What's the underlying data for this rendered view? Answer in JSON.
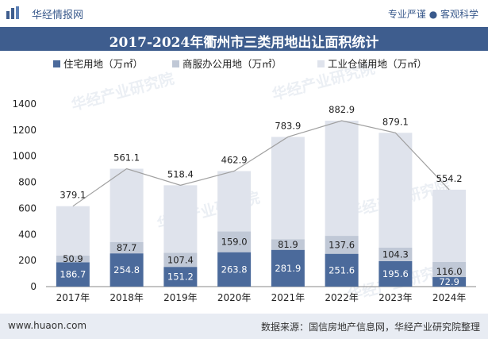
{
  "header": {
    "site_name": "华经情报网",
    "tagline": "专业严谨 ● 客观科学"
  },
  "footer": {
    "url": "www.huaon.com",
    "source": "数据来源：国信房地产信息网，华经产业研究院整理"
  },
  "watermark": "华经产业研究院",
  "colors": {
    "title_bar": "#3e5d8e",
    "residential": "#4b6a9b",
    "commercial": "#c0c8d6",
    "industrial": "#dfe3ec",
    "total_line": "#a0a0a0"
  },
  "chart_data": {
    "type": "bar",
    "stacked": true,
    "title": "2017-2024年衢州市三类用地出让面积统计",
    "categories": [
      "2017年",
      "2018年",
      "2019年",
      "2020年",
      "2021年",
      "2022年",
      "2023年",
      "2024年"
    ],
    "series": [
      {
        "name": "住宅用地（万㎡）",
        "values": [
          186.7,
          254.8,
          151.2,
          263.8,
          281.9,
          251.6,
          195.6,
          72.9
        ]
      },
      {
        "name": "商服办公用地（万㎡）",
        "values": [
          50.9,
          87.7,
          107.4,
          159.0,
          81.9,
          137.6,
          104.3,
          116.0
        ]
      },
      {
        "name": "工业仓储用地（万㎡）",
        "values": [
          379.1,
          561.1,
          518.4,
          462.9,
          783.9,
          882.9,
          879.1,
          554.2
        ]
      }
    ],
    "ylim": [
      0,
      1400
    ],
    "yticks": [
      0,
      200,
      400,
      600,
      800,
      1000,
      1200,
      1400
    ],
    "legend_position": "top",
    "total_line": true
  }
}
